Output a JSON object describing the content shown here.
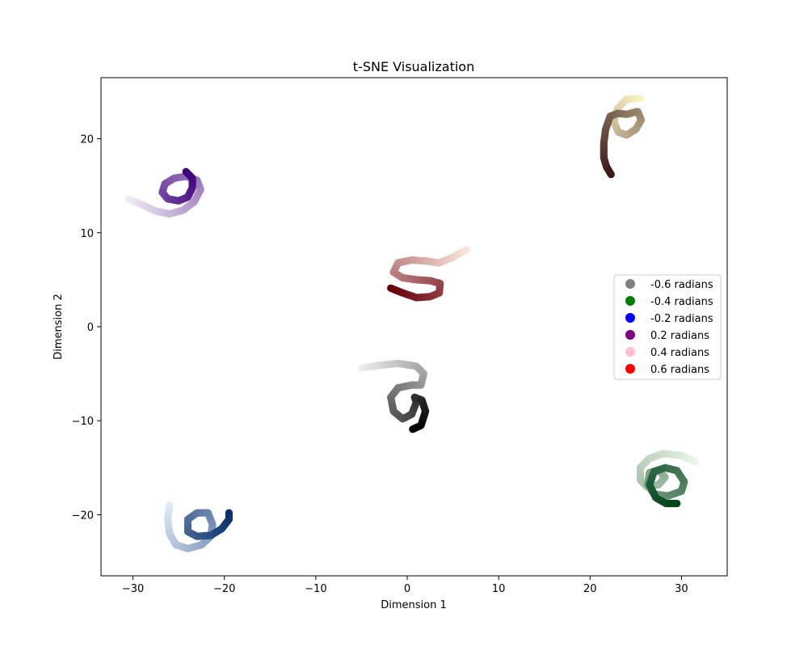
{
  "chart_data": {
    "type": "scatter",
    "title": "t-SNE Visualization",
    "xlabel": "Dimension 1",
    "ylabel": "Dimension 2",
    "xlim": [
      -33.5,
      35
    ],
    "ylim": [
      -26.5,
      26.5
    ],
    "xticks": [
      -30,
      -20,
      -10,
      0,
      10,
      20,
      30
    ],
    "yticks": [
      -20,
      -10,
      0,
      10,
      20
    ],
    "xtick_labels": [
      "−30",
      "−20",
      "−10",
      "0",
      "10",
      "20",
      "30"
    ],
    "ytick_labels": [
      "−20",
      "−10",
      "0",
      "10",
      "20"
    ],
    "grid": false,
    "legend_position": "center-right",
    "series": [
      {
        "name": "-0.6 radians",
        "legend_color": "#808080",
        "color_from": "#f0f0f0",
        "color_to": "#000000",
        "points": [
          [
            -5,
            -4.4
          ],
          [
            -3,
            -4.1
          ],
          [
            -1,
            -3.9
          ],
          [
            1,
            -4.2
          ],
          [
            1.8,
            -5
          ],
          [
            1.5,
            -6.2
          ],
          [
            0.5,
            -6.2
          ],
          [
            -1,
            -6.5
          ],
          [
            -1.8,
            -7.5
          ],
          [
            -1.5,
            -9
          ],
          [
            -0.5,
            -9.8
          ],
          [
            0.5,
            -9.3
          ],
          [
            1,
            -8
          ],
          [
            0.8,
            -7.5
          ],
          [
            1.6,
            -7.8
          ],
          [
            2,
            -9
          ],
          [
            1.5,
            -10.5
          ],
          [
            0.6,
            -10.9
          ]
        ]
      },
      {
        "name": "-0.4 radians",
        "legend_color": "#008000",
        "color_from": "#eef7ea",
        "color_to": "#00441b",
        "points": [
          [
            31.5,
            -14.4
          ],
          [
            30,
            -13.7
          ],
          [
            28,
            -13.5
          ],
          [
            26.5,
            -14
          ],
          [
            25.5,
            -15
          ],
          [
            25.5,
            -16.3
          ],
          [
            26.2,
            -17
          ],
          [
            27.5,
            -16.8
          ],
          [
            28.2,
            -16
          ],
          [
            27.5,
            -15.3
          ],
          [
            26.5,
            -15.5
          ],
          [
            26.3,
            -16.8
          ],
          [
            27,
            -17.8
          ],
          [
            28.5,
            -18
          ],
          [
            30,
            -17.5
          ],
          [
            30.3,
            -16.5
          ],
          [
            29.5,
            -15.3
          ],
          [
            28.2,
            -15
          ],
          [
            27,
            -15.4
          ],
          [
            26.5,
            -16.8
          ],
          [
            27.2,
            -18.2
          ],
          [
            28.3,
            -18.8
          ],
          [
            29.5,
            -18.8
          ]
        ]
      },
      {
        "name": "-0.2 radians",
        "legend_color": "#0000ff",
        "color_from": "#e1ecf7",
        "color_to": "#08306b",
        "points": [
          [
            -26,
            -19
          ],
          [
            -26.2,
            -20.5
          ],
          [
            -26,
            -22
          ],
          [
            -25.3,
            -23.2
          ],
          [
            -24,
            -23.6
          ],
          [
            -22.5,
            -23.2
          ],
          [
            -21.5,
            -22.3
          ],
          [
            -21.3,
            -21
          ],
          [
            -21.8,
            -19.8
          ],
          [
            -23,
            -19.8
          ],
          [
            -24,
            -20.5
          ],
          [
            -24,
            -21.8
          ],
          [
            -23,
            -22.3
          ],
          [
            -21.5,
            -22.2
          ],
          [
            -20.3,
            -21.5
          ],
          [
            -19.5,
            -20.5
          ],
          [
            -19.5,
            -19.8
          ]
        ]
      },
      {
        "name": "0.2 radians",
        "legend_color": "#800080",
        "color_from": "#f2f0f7",
        "color_to": "#3f007d",
        "points": [
          [
            -30.5,
            13.6
          ],
          [
            -29,
            13
          ],
          [
            -27.5,
            12.3
          ],
          [
            -26,
            12
          ],
          [
            -24.5,
            12.4
          ],
          [
            -23.3,
            13.3
          ],
          [
            -22.6,
            14.6
          ],
          [
            -23,
            15.6
          ],
          [
            -24.2,
            16
          ],
          [
            -25.5,
            15.8
          ],
          [
            -26.5,
            15.2
          ],
          [
            -26.8,
            14.3
          ],
          [
            -26.2,
            13.6
          ],
          [
            -25,
            13.4
          ],
          [
            -24,
            13.8
          ],
          [
            -23.5,
            14.8
          ],
          [
            -23.5,
            15.8
          ],
          [
            -24.2,
            16.5
          ]
        ]
      },
      {
        "name": "0.4 radians",
        "legend_color": "#ffc0cb",
        "color_from": "#fdf6c4",
        "color_to": "#3a1a1a",
        "points": [
          [
            25.5,
            24.3
          ],
          [
            24,
            24.2
          ],
          [
            23,
            23.2
          ],
          [
            22.6,
            21.8
          ],
          [
            23.1,
            20.7
          ],
          [
            24,
            20.4
          ],
          [
            25,
            21
          ],
          [
            25.6,
            22
          ],
          [
            25.2,
            22.9
          ],
          [
            24,
            22.6
          ],
          [
            23,
            22.7
          ],
          [
            22.2,
            22.4
          ],
          [
            21.7,
            21
          ],
          [
            21.5,
            19.5
          ],
          [
            21.5,
            18
          ],
          [
            21.8,
            17
          ],
          [
            22.3,
            16.2
          ]
        ]
      },
      {
        "name": "0.6 radians",
        "legend_color": "#ff0000",
        "color_from": "#fde8dc",
        "color_to": "#67000d",
        "points": [
          [
            6.5,
            8.2
          ],
          [
            5,
            7.4
          ],
          [
            3.5,
            6.8
          ],
          [
            2,
            7
          ],
          [
            0.5,
            7.1
          ],
          [
            -1,
            6.8
          ],
          [
            -1.5,
            5.8
          ],
          [
            -0.5,
            5.2
          ],
          [
            1,
            5
          ],
          [
            2.5,
            4.9
          ],
          [
            3.6,
            4.6
          ],
          [
            3.5,
            3.6
          ],
          [
            2.5,
            3.2
          ],
          [
            1,
            3.1
          ],
          [
            -0.5,
            3.6
          ],
          [
            -1.8,
            4.1
          ]
        ]
      }
    ]
  }
}
